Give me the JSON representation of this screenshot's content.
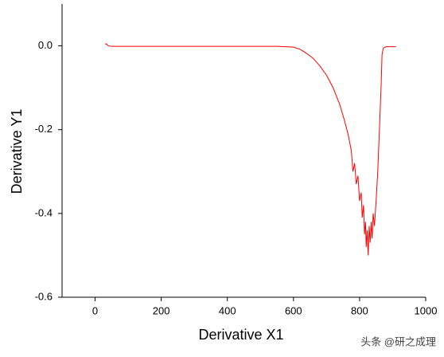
{
  "chart_data": {
    "type": "line",
    "x_label": "Derivative X1",
    "y_label": "Derivative Y1",
    "x": [
      30,
      35,
      40,
      50,
      100,
      200,
      300,
      400,
      500,
      550,
      600,
      620,
      640,
      660,
      680,
      700,
      720,
      740,
      755,
      765,
      775,
      780,
      785,
      790,
      795,
      800,
      805,
      808,
      812,
      815,
      818,
      820,
      823,
      826,
      829,
      832,
      835,
      838,
      841,
      845,
      850,
      855,
      860,
      865,
      868,
      872,
      880,
      900,
      910
    ],
    "series": [
      {
        "name": "Derivative Y1",
        "color": "#ff0000",
        "values": [
          0.005,
          0.004,
          0.0,
          -0.001,
          -0.001,
          -0.001,
          -0.001,
          -0.001,
          -0.001,
          -0.001,
          -0.003,
          -0.008,
          -0.018,
          -0.03,
          -0.048,
          -0.07,
          -0.1,
          -0.14,
          -0.18,
          -0.21,
          -0.25,
          -0.3,
          -0.28,
          -0.33,
          -0.31,
          -0.37,
          -0.35,
          -0.41,
          -0.38,
          -0.45,
          -0.42,
          -0.48,
          -0.44,
          -0.5,
          -0.43,
          -0.47,
          -0.42,
          -0.46,
          -0.4,
          -0.43,
          -0.37,
          -0.3,
          -0.2,
          -0.1,
          -0.02,
          -0.005,
          -0.002,
          -0.002,
          -0.002
        ]
      }
    ],
    "xlim": [
      -100,
      1000
    ],
    "ylim": [
      -0.6,
      0.1
    ],
    "xticks": [
      0,
      200,
      400,
      600,
      800,
      1000
    ],
    "yticks": [
      {
        "value": 0,
        "label": "0.0"
      },
      {
        "value": -0.2,
        "label": "-0.2"
      },
      {
        "value": -0.4,
        "label": "-0.4"
      },
      {
        "value": -0.6,
        "label": "-0.6"
      }
    ],
    "watermark": "头条 @研之成理"
  }
}
